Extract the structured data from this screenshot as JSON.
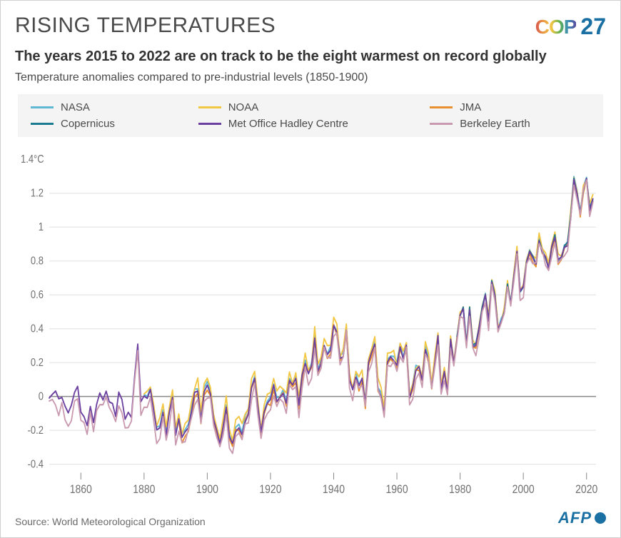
{
  "title": "RISING TEMPERATURES",
  "logo": {
    "text": "COP",
    "number": "27"
  },
  "subtitle": "The years 2015 to 2022 are on track to be the eight warmest on record globally",
  "description": "Temperature anomalies compared to pre-industrial levels (1850-1900)",
  "legend": {
    "bg": "#f4f4f4",
    "items": [
      {
        "label": "NASA",
        "color": "#5fb7d4"
      },
      {
        "label": "NOAA",
        "color": "#f2c744"
      },
      {
        "label": "JMA",
        "color": "#e8902f"
      },
      {
        "label": "Copernicus",
        "color": "#1a7a8f"
      },
      {
        "label": "Met Office Hadley Centre",
        "color": "#6b3fa0"
      },
      {
        "label": "Berkeley Earth",
        "color": "#c99aaf"
      }
    ]
  },
  "chart": {
    "type": "line",
    "xlim": [
      1850,
      2023
    ],
    "ylim": [
      -0.45,
      1.45
    ],
    "yticks": [
      -0.4,
      -0.2,
      0,
      0.2,
      0.4,
      0.6,
      0.8,
      1,
      1.2
    ],
    "ytop_label": "1.4",
    "yunit": "°C",
    "xticks": [
      1860,
      1880,
      1900,
      1920,
      1940,
      1960,
      1980,
      2000,
      2020
    ],
    "background": "#ffffff",
    "grid_color": "#e5e5e5",
    "zero_color": "#888888",
    "line_width": 1.8,
    "base_series": {
      "start_year": 1850,
      "values": [
        0.0,
        0.02,
        0.04,
        -0.02,
        0.0,
        -0.05,
        -0.1,
        -0.06,
        0.02,
        0.05,
        -0.1,
        -0.12,
        -0.18,
        -0.06,
        -0.15,
        -0.05,
        0.02,
        -0.02,
        0.04,
        -0.04,
        -0.05,
        -0.12,
        0.02,
        -0.02,
        -0.14,
        -0.1,
        -0.12,
        0.12,
        0.3,
        -0.04,
        0.0,
        -0.02,
        0.04,
        -0.08,
        -0.2,
        -0.18,
        -0.1,
        -0.24,
        -0.1,
        0.0,
        -0.22,
        -0.14,
        -0.24,
        -0.2,
        -0.18,
        -0.1,
        0.02,
        0.04,
        -0.14,
        0.02,
        0.06,
        0.02,
        -0.14,
        -0.2,
        -0.28,
        -0.18,
        -0.06,
        -0.24,
        -0.28,
        -0.2,
        -0.18,
        -0.22,
        -0.14,
        -0.1,
        0.05,
        0.1,
        -0.06,
        -0.22,
        -0.1,
        -0.04,
        -0.02,
        0.06,
        -0.02,
        0.0,
        0.02,
        -0.04,
        0.1,
        0.06,
        0.1,
        -0.06,
        0.12,
        0.2,
        0.14,
        0.18,
        0.35,
        0.14,
        0.2,
        0.3,
        0.24,
        0.28,
        0.42,
        0.38,
        0.22,
        0.24,
        0.4,
        0.1,
        0.04,
        0.12,
        0.06,
        0.1,
        -0.04,
        0.2,
        0.26,
        0.3,
        0.05,
        0.0,
        -0.1,
        0.2,
        0.24,
        0.22,
        0.18,
        0.3,
        0.22,
        0.3,
        0.0,
        0.05,
        0.16,
        0.18,
        0.1,
        0.28,
        0.22,
        0.05,
        0.2,
        0.36,
        0.04,
        0.14,
        0.02,
        0.34,
        0.2,
        0.34,
        0.48,
        0.52,
        0.3,
        0.52,
        0.3,
        0.3,
        0.4,
        0.52,
        0.6,
        0.44,
        0.68,
        0.6,
        0.4,
        0.44,
        0.5,
        0.66,
        0.54,
        0.7,
        0.85,
        0.62,
        0.64,
        0.78,
        0.86,
        0.82,
        0.78,
        0.92,
        0.86,
        0.82,
        0.76,
        0.88,
        0.94,
        0.8,
        0.82,
        0.88,
        0.9,
        1.06,
        1.28,
        1.2,
        1.08,
        1.22,
        1.28,
        1.1,
        1.16
      ]
    },
    "series_offsets": {
      "NASA": 0.02,
      "NOAA": 0.05,
      "JMA": -0.02,
      "Copernicus": 0.01,
      "Met Office Hadley Centre": 0.0,
      "Berkeley Earth": -0.06
    },
    "series_jitter": {
      "NASA": 0.015,
      "NOAA": 0.03,
      "JMA": 0.02,
      "Copernicus": 0.012,
      "Met Office Hadley Centre": 0.01,
      "Berkeley Earth": 0.035
    },
    "series_start": {
      "NASA": 1880,
      "NOAA": 1880,
      "JMA": 1891,
      "Copernicus": 1979,
      "Met Office Hadley Centre": 1850,
      "Berkeley Earth": 1850
    }
  },
  "source": "Source: World Meteorological Organization",
  "afp": "AFP"
}
